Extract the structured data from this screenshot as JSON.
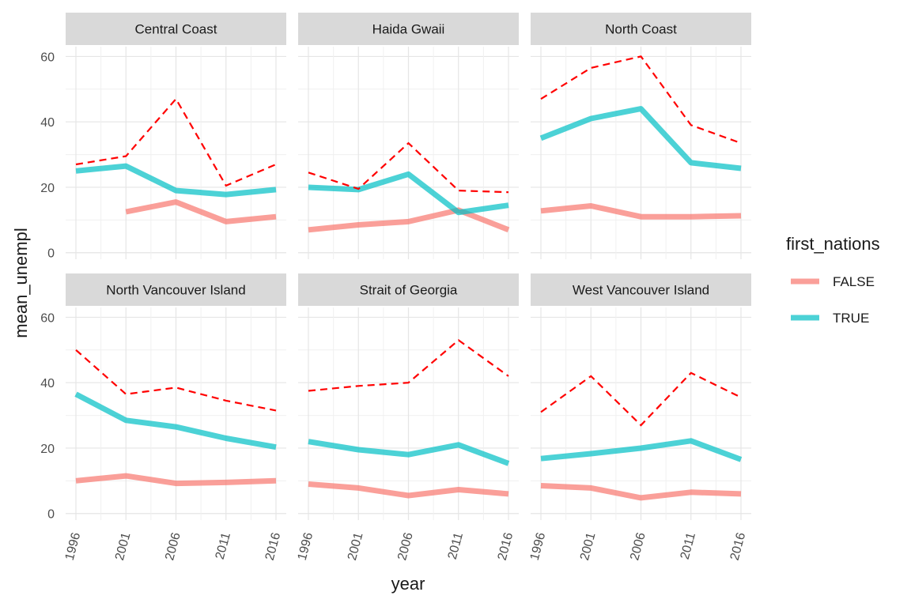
{
  "chart_data": {
    "type": "line",
    "facet_by": "region",
    "xlabel": "year",
    "ylabel": "mean_unempl",
    "x": [
      1996,
      2001,
      2006,
      2011,
      2016
    ],
    "x_ticks": [
      "1996",
      "2001",
      "2006",
      "2011",
      "2016"
    ],
    "y_ticks": [
      0,
      20,
      40,
      60
    ],
    "ylim": [
      -2,
      63
    ],
    "grid": true,
    "legend": {
      "title": "first_nations",
      "placement": "right",
      "entries": [
        {
          "label": "FALSE",
          "color": "#F8766D"
        },
        {
          "label": "TRUE",
          "color": "#00BFC4"
        }
      ]
    },
    "reference_line": {
      "color": "#FF0000",
      "style": "dashed"
    },
    "panels": [
      {
        "region": "Central Coast",
        "series": [
          {
            "name": "FALSE",
            "values": [
              null,
              12.5,
              15.5,
              9.5,
              11
            ]
          },
          {
            "name": "TRUE",
            "values": [
              25,
              26.5,
              19,
              17.8,
              19.3
            ]
          },
          {
            "values": [
              27,
              29.5,
              47,
              20.5,
              27
            ]
          }
        ]
      },
      {
        "region": "Haida Gwaii",
        "series": [
          {
            "name": "FALSE",
            "values": [
              7,
              8.5,
              9.5,
              13,
              7
            ]
          },
          {
            "name": "TRUE",
            "values": [
              20,
              19.3,
              24,
              12.3,
              14.5
            ]
          },
          {
            "values": [
              24.5,
              19.5,
              33.5,
              19,
              18.5
            ]
          }
        ]
      },
      {
        "region": "North Coast",
        "series": [
          {
            "name": "FALSE",
            "values": [
              12.8,
              14.3,
              11,
              11,
              11.3
            ]
          },
          {
            "name": "TRUE",
            "values": [
              35,
              41,
              44,
              27.5,
              25.8
            ]
          },
          {
            "values": [
              47,
              56.5,
              60,
              39,
              33.5
            ]
          }
        ]
      },
      {
        "region": "North Vancouver Island",
        "series": [
          {
            "name": "FALSE",
            "values": [
              10,
              11.5,
              9.2,
              9.5,
              10
            ]
          },
          {
            "name": "TRUE",
            "values": [
              36.5,
              28.5,
              26.5,
              23,
              20.3
            ]
          },
          {
            "values": [
              50,
              36.5,
              38.5,
              34.5,
              31.5
            ]
          }
        ]
      },
      {
        "region": "Strait of Georgia",
        "series": [
          {
            "name": "FALSE",
            "values": [
              9,
              7.8,
              5.5,
              7.3,
              6
            ]
          },
          {
            "name": "TRUE",
            "values": [
              22,
              19.5,
              18,
              21,
              15.3
            ]
          },
          {
            "values": [
              37.5,
              39,
              40,
              53,
              42
            ]
          }
        ]
      },
      {
        "region": "West Vancouver Island",
        "series": [
          {
            "name": "FALSE",
            "values": [
              8.5,
              7.8,
              4.8,
              6.5,
              6
            ]
          },
          {
            "name": "TRUE",
            "values": [
              16.8,
              18.3,
              20,
              22.2,
              16.5
            ]
          },
          {
            "values": [
              31,
              42,
              27,
              43,
              35.5
            ]
          }
        ]
      }
    ]
  }
}
